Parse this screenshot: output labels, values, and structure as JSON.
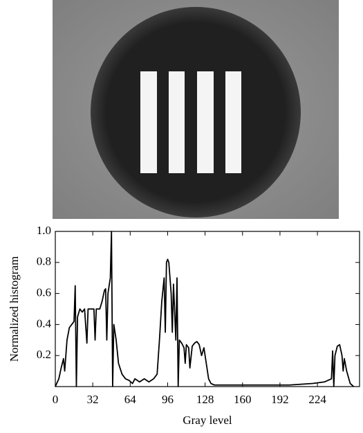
{
  "chart_data": {
    "type": "line",
    "xlabel": "Gray level",
    "ylabel": "Normalized histogram",
    "x": [
      0,
      3,
      5,
      7,
      8,
      10,
      12,
      14,
      16,
      17,
      18,
      19,
      21,
      23,
      25,
      27,
      28,
      31,
      33,
      34,
      35,
      38,
      40,
      42,
      43,
      44,
      45,
      46,
      47,
      48,
      49,
      50,
      52,
      54,
      57,
      60,
      63,
      66,
      68,
      72,
      76,
      80,
      84,
      87,
      89,
      91,
      93,
      94,
      95,
      96,
      97,
      99,
      100,
      101,
      103,
      104,
      105,
      106,
      108,
      110,
      111,
      112,
      114,
      115,
      117,
      119,
      121,
      123,
      125,
      127,
      129,
      131,
      133,
      136,
      145,
      160,
      180,
      200,
      220,
      230,
      236,
      237,
      238,
      239,
      241,
      243,
      245,
      246,
      247,
      249,
      252,
      255
    ],
    "values": [
      0,
      0.05,
      0.12,
      0.18,
      0.1,
      0.3,
      0.38,
      0.4,
      0.42,
      0.65,
      0,
      0.45,
      0.5,
      0.48,
      0.5,
      0.28,
      0.5,
      0.5,
      0.5,
      0.3,
      0.5,
      0.5,
      0.55,
      0.62,
      0.63,
      0.3,
      0.6,
      0.65,
      0.7,
      1.0,
      0,
      0.4,
      0.3,
      0.15,
      0.08,
      0.05,
      0.04,
      0.02,
      0.05,
      0.03,
      0.05,
      0.03,
      0.05,
      0.08,
      0.3,
      0.55,
      0.7,
      0.35,
      0.8,
      0.82,
      0.8,
      0.6,
      0.35,
      0.66,
      0.3,
      0.7,
      0,
      0.3,
      0.28,
      0.25,
      0.15,
      0.27,
      0.25,
      0.12,
      0.26,
      0.28,
      0.29,
      0.27,
      0.2,
      0.25,
      0.15,
      0.05,
      0.02,
      0.01,
      0.01,
      0.01,
      0.01,
      0.01,
      0.02,
      0.03,
      0.05,
      0.23,
      0,
      0.2,
      0.26,
      0.27,
      0.2,
      0.1,
      0.18,
      0.1,
      0.02,
      0
    ],
    "color": "#000000",
    "xlim": [
      0,
      260
    ],
    "xticks": [
      0,
      32,
      64,
      96,
      128,
      160,
      192,
      224
    ],
    "ylim": [
      0,
      1
    ],
    "yticks": [
      0.2,
      0.4,
      0.6,
      0.8,
      {
        "value": 1,
        "label": "1.0"
      }
    ]
  }
}
